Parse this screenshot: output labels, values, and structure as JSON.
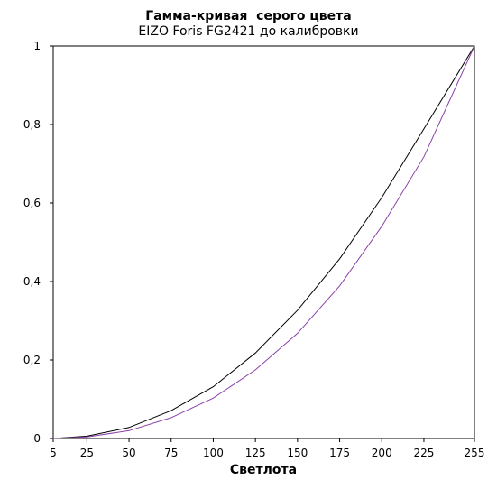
{
  "chart_data": {
    "type": "line",
    "title": "Гамма-кривая  серого цвета",
    "subtitle": "EIZO Foris FG2421 до калибровки",
    "xlabel": "Светлота",
    "ylabel": "",
    "x": [
      5,
      25,
      50,
      75,
      100,
      125,
      150,
      175,
      200,
      225,
      255
    ],
    "xlim": [
      5,
      255
    ],
    "ylim": [
      0,
      1
    ],
    "x_tick_labels": [
      "5",
      "25",
      "50",
      "75",
      "100",
      "125",
      "150",
      "175",
      "200",
      "225",
      "255"
    ],
    "y_tick_values": [
      0,
      0.2,
      0.4,
      0.6,
      0.8,
      1
    ],
    "y_tick_labels": [
      "0",
      "0,2",
      "0,4",
      "0,6",
      "0,8",
      "1"
    ],
    "grid": false,
    "legend": "none",
    "series": [
      {
        "color": "#000000",
        "values": [
          0,
          0.006,
          0.028,
          0.071,
          0.132,
          0.218,
          0.327,
          0.458,
          0.614,
          0.789,
          1.0
        ]
      },
      {
        "color": "#8a3fa8",
        "values": [
          0,
          0.004,
          0.02,
          0.053,
          0.103,
          0.175,
          0.268,
          0.389,
          0.541,
          0.718,
          1.0
        ]
      }
    ]
  }
}
